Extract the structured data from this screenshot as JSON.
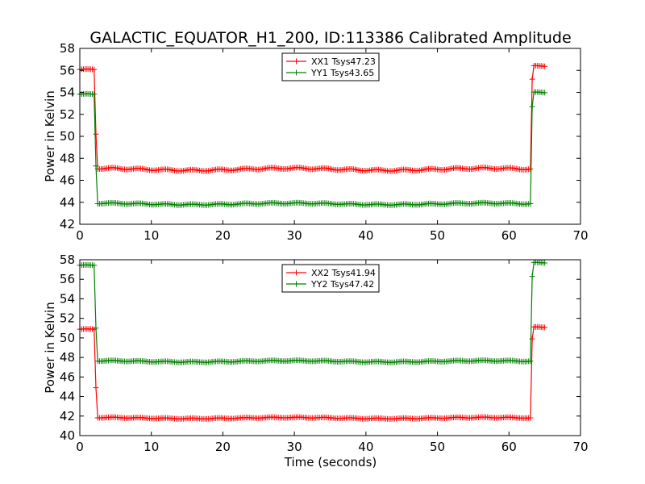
{
  "figure": {
    "title": "GALACTIC_EQUATOR_H1_200, ID:113386 Calibrated Amplitude",
    "colors": {
      "xx": "#ff0000",
      "yy": "#008000",
      "axis": "#000000",
      "background": "#ffffff"
    }
  },
  "chart_data": [
    {
      "type": "line",
      "xlabel": "",
      "ylabel": "Power in Kelvin",
      "xlim": [
        0,
        70
      ],
      "ylim": [
        42,
        58
      ],
      "xticks": [
        0,
        10,
        20,
        30,
        40,
        50,
        60,
        70
      ],
      "yticks": [
        42,
        44,
        46,
        48,
        50,
        52,
        54,
        56,
        58
      ],
      "grid": false,
      "legend_position": "top-center",
      "marker": "+",
      "series": [
        {
          "name": "XX1 Tsys47.23",
          "color": "#ff0000",
          "segments": [
            {
              "x0": 0.0,
              "x1": 2.0,
              "level": 56.05,
              "wobble": 0.05
            },
            {
              "x0": 2.5,
              "x1": 63.0,
              "level": 47.0,
              "wobble": 0.12
            },
            {
              "x0": 63.5,
              "x1": 65.0,
              "level": 56.4,
              "wobble": 0.05
            }
          ],
          "transitions": [
            [
              2.0,
              56.05,
              2.25,
              50.2,
              2.5,
              47.0
            ],
            [
              63.0,
              47.1,
              63.25,
              55.2,
              63.5,
              56.4
            ]
          ]
        },
        {
          "name": "YY1 Tsys43.65",
          "color": "#008000",
          "segments": [
            {
              "x0": 0.0,
              "x1": 2.0,
              "level": 53.8,
              "wobble": 0.05
            },
            {
              "x0": 2.5,
              "x1": 63.0,
              "level": 43.85,
              "wobble": 0.08
            },
            {
              "x0": 63.5,
              "x1": 65.0,
              "level": 54.0,
              "wobble": 0.05
            }
          ],
          "transitions": [
            [
              2.0,
              53.8,
              2.25,
              47.3,
              2.5,
              43.75
            ],
            [
              63.0,
              43.9,
              63.25,
              52.7,
              63.5,
              53.9
            ]
          ]
        }
      ]
    },
    {
      "type": "line",
      "xlabel": "Time (seconds)",
      "ylabel": "Power in Kelvin",
      "xlim": [
        0,
        70
      ],
      "ylim": [
        40,
        58
      ],
      "xticks": [
        0,
        10,
        20,
        30,
        40,
        50,
        60,
        70
      ],
      "yticks": [
        40,
        42,
        44,
        46,
        48,
        50,
        52,
        54,
        56,
        58
      ],
      "grid": false,
      "legend_position": "top-center",
      "marker": "+",
      "series": [
        {
          "name": "XX2 Tsys41.94",
          "color": "#ff0000",
          "segments": [
            {
              "x0": 0.0,
              "x1": 2.0,
              "level": 50.85,
              "wobble": 0.05
            },
            {
              "x0": 2.5,
              "x1": 63.0,
              "level": 41.8,
              "wobble": 0.07
            },
            {
              "x0": 63.5,
              "x1": 65.0,
              "level": 51.1,
              "wobble": 0.05
            }
          ],
          "transitions": [
            [
              2.0,
              50.8,
              2.25,
              44.9,
              2.5,
              41.7
            ],
            [
              63.0,
              41.85,
              63.25,
              49.9,
              63.5,
              51.0
            ]
          ]
        },
        {
          "name": "YY2 Tsys47.42",
          "color": "#008000",
          "segments": [
            {
              "x0": 0.0,
              "x1": 2.0,
              "level": 57.4,
              "wobble": 0.05
            },
            {
              "x0": 2.5,
              "x1": 63.0,
              "level": 47.6,
              "wobble": 0.08
            },
            {
              "x0": 63.5,
              "x1": 65.0,
              "level": 57.7,
              "wobble": 0.05
            }
          ],
          "transitions": [
            [
              2.0,
              57.4,
              2.25,
              51.0,
              2.5,
              47.4
            ],
            [
              63.0,
              47.7,
              63.25,
              56.3,
              63.5,
              57.5
            ]
          ]
        }
      ]
    }
  ]
}
